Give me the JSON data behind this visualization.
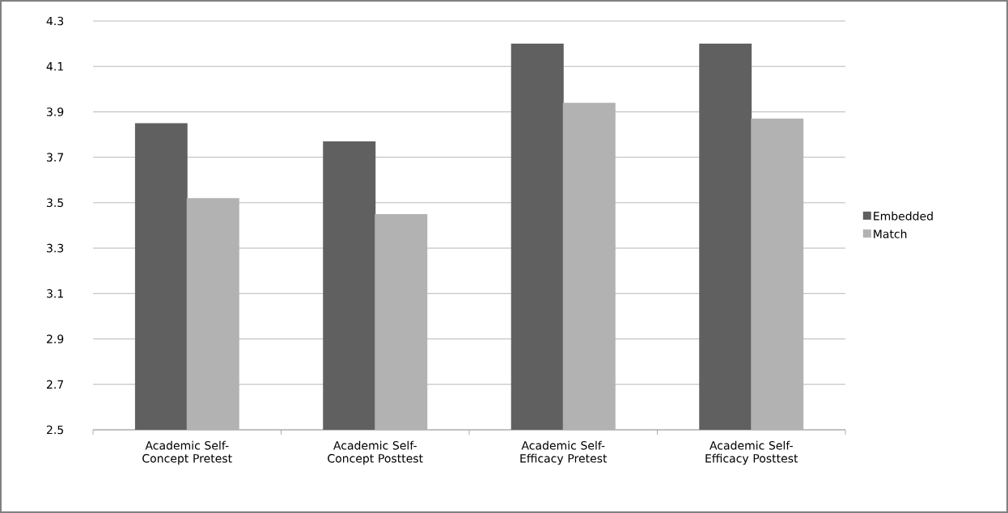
{
  "chart_data": {
    "type": "bar",
    "categories": [
      "Academic Self-Concept Pretest",
      "Academic Self-Concept Posttest",
      "Academic Self-Efficacy Pretest",
      "Academic Self-Efficacy Posttest"
    ],
    "series": [
      {
        "name": "Embedded",
        "color": "#606060",
        "values": [
          3.85,
          3.77,
          4.2,
          4.2
        ]
      },
      {
        "name": "Match",
        "color": "#b2b2b2",
        "values": [
          3.52,
          3.45,
          3.94,
          3.87
        ]
      }
    ],
    "ylim": [
      2.5,
      4.3
    ],
    "yticks": [
      2.5,
      2.7,
      2.9,
      3.1,
      3.3,
      3.5,
      3.7,
      3.9,
      4.1,
      4.3
    ],
    "grid": "y",
    "legend": "right"
  }
}
